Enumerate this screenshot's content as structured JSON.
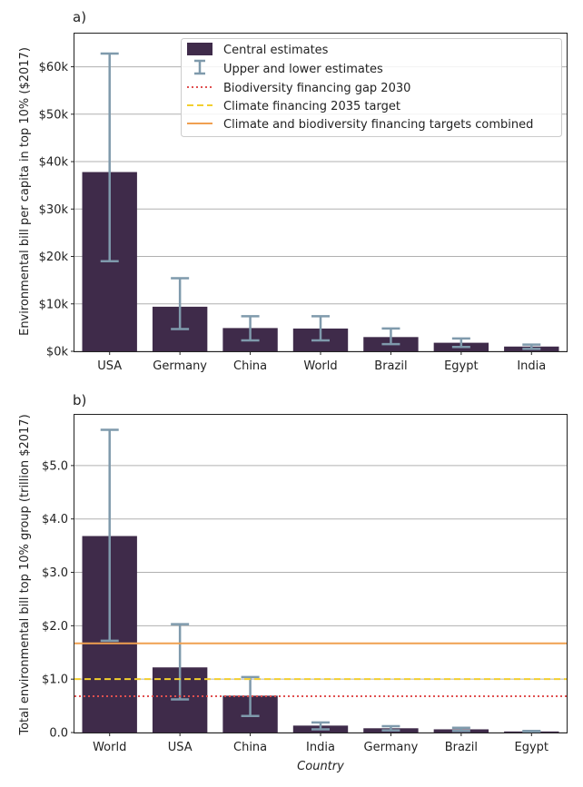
{
  "colors": {
    "bar": "#3f2b4a",
    "errorbar": "#7f9aac",
    "grid": "#b0b0b0",
    "biodiversity_line": "#e05050",
    "climate_line": "#f2cf2f",
    "combined_line": "#f0a050"
  },
  "legend": {
    "central": "Central estimates",
    "bounds": "Upper and lower estimates",
    "biodiversity": "Biodiversity financing gap 2030",
    "climate": "Climate financing 2035 target",
    "combined": "Climate and biodiversity financing targets combined"
  },
  "chart_data": [
    {
      "panel": "a)",
      "type": "bar",
      "ylabel": "Environmental bill per capita in top 10% ($2017)",
      "xlabel": "",
      "categories": [
        "USA",
        "Germany",
        "China",
        "World",
        "Brazil",
        "Egypt",
        "India"
      ],
      "series": [
        {
          "name": "Central estimates",
          "values": [
            37800,
            9400,
            4900,
            4800,
            3000,
            1800,
            1000
          ],
          "lower": [
            19000,
            4700,
            2300,
            2300,
            1500,
            900,
            500
          ],
          "upper": [
            62800,
            15400,
            7400,
            7400,
            4800,
            2700,
            1400
          ]
        }
      ],
      "ylim": [
        0,
        67000
      ],
      "yticks": [
        0,
        10000,
        20000,
        30000,
        40000,
        50000,
        60000
      ],
      "ytick_labels": [
        "$0k",
        "$10k",
        "$20k",
        "$30k",
        "$40k",
        "$50k",
        "$60k"
      ],
      "grid": true,
      "legend_position": "top-right"
    },
    {
      "panel": "b)",
      "type": "bar",
      "ylabel": "Total environmental bill top 10% group (trillion $2017)",
      "xlabel": "Country",
      "categories": [
        "World",
        "USA",
        "China",
        "India",
        "Germany",
        "Brazil",
        "Egypt"
      ],
      "series": [
        {
          "name": "Central estimates",
          "values": [
            3.68,
            1.22,
            0.69,
            0.13,
            0.08,
            0.06,
            0.02
          ],
          "lower": [
            1.72,
            0.62,
            0.31,
            0.06,
            0.04,
            0.03,
            0.01
          ],
          "upper": [
            5.67,
            2.03,
            1.04,
            0.19,
            0.12,
            0.09,
            0.03
          ]
        }
      ],
      "reference_lines": [
        {
          "name": "Biodiversity financing gap 2030",
          "value": 0.68,
          "style": "dotted"
        },
        {
          "name": "Climate financing 2035 target",
          "value": 1.0,
          "style": "dashed"
        },
        {
          "name": "Climate and biodiversity financing targets combined",
          "value": 1.67,
          "style": "solid"
        }
      ],
      "ylim": [
        0,
        5.95
      ],
      "yticks": [
        0,
        1,
        2,
        3,
        4,
        5
      ],
      "ytick_labels": [
        "0.0",
        "$1.0",
        "$2.0",
        "$3.0",
        "$4.0",
        "$5.0"
      ],
      "grid": true
    }
  ]
}
